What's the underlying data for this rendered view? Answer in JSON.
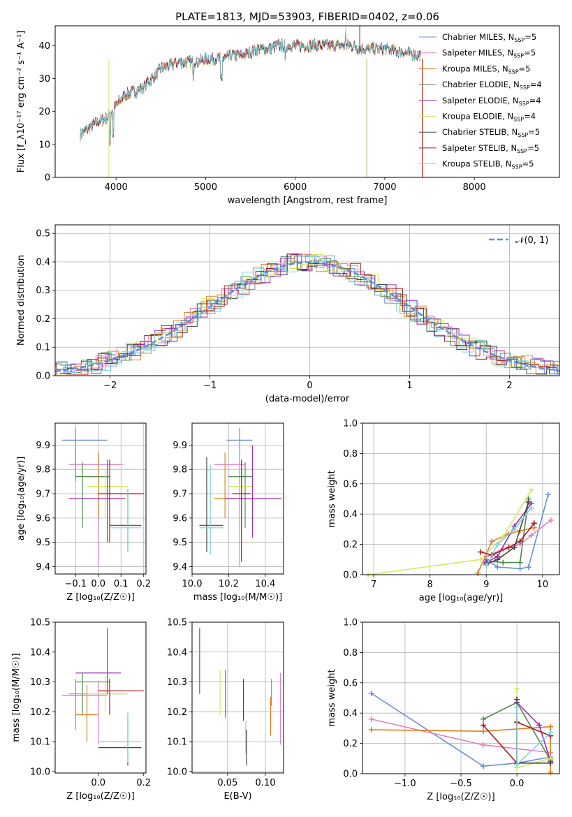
{
  "chart_data": [
    {
      "id": "spectrum",
      "type": "line",
      "title": "PLATE=1813, MJD=53903, FIBERID=0402, z=0.06",
      "xlabel": "wavelength [Angstrom, rest frame]",
      "ylabel": "Flux [f_λ10⁻¹⁷ erg cm⁻² s⁻¹ A⁻¹]",
      "xlim": [
        3320,
        8950
      ],
      "ylim": [
        0,
        46
      ],
      "xticks": [
        4000,
        5000,
        6000,
        7000,
        8000
      ],
      "yticks": [
        0,
        10,
        20,
        30,
        40
      ],
      "legend_position": "right",
      "legend": [
        {
          "label": "Chabrier MILES, N_SSP=5",
          "color": "#6a8fdc"
        },
        {
          "label": "Salpeter MILES, N_SSP=5",
          "color": "#e07fc2"
        },
        {
          "label": "Kroupa MILES, N_SSP=5",
          "color": "#e07f1f"
        },
        {
          "label": "Chabrier ELODIE, N_SSP=4",
          "color": "#4d8a4d"
        },
        {
          "label": "Salpeter ELODIE, N_SSP=4",
          "color": "#9b2fb0"
        },
        {
          "label": "Kroupa ELODIE, N_SSP=4",
          "color": "#d7e660"
        },
        {
          "label": "Chabrier STELIB, N_SSP=5",
          "color": "#444444"
        },
        {
          "label": "Salpeter STELIB, N_SSP=5",
          "color": "#b01818"
        },
        {
          "label": "Kroupa STELIB, N_SSP=5",
          "color": "#7fd6df"
        }
      ],
      "continuum": [
        [
          3600,
          13
        ],
        [
          3700,
          15
        ],
        [
          3800,
          17
        ],
        [
          3900,
          18
        ],
        [
          4000,
          22
        ],
        [
          4100,
          25
        ],
        [
          4200,
          26
        ],
        [
          4300,
          27
        ],
        [
          4400,
          30
        ],
        [
          4500,
          33
        ],
        [
          4600,
          34
        ],
        [
          4700,
          35
        ],
        [
          4800,
          35
        ],
        [
          4900,
          35
        ],
        [
          5000,
          36
        ],
        [
          5100,
          36
        ],
        [
          5200,
          36
        ],
        [
          5300,
          37
        ],
        [
          5400,
          37
        ],
        [
          5500,
          38
        ],
        [
          5600,
          39
        ],
        [
          5700,
          39
        ],
        [
          5800,
          40
        ],
        [
          5900,
          40
        ],
        [
          6000,
          40
        ],
        [
          6200,
          40
        ],
        [
          6400,
          40
        ],
        [
          6600,
          40
        ],
        [
          6800,
          39
        ],
        [
          7000,
          39
        ],
        [
          7200,
          38
        ],
        [
          7400,
          37
        ]
      ]
    },
    {
      "id": "residuals",
      "type": "line",
      "xlabel": "(data-model)/error",
      "ylabel": "Normed distribution",
      "xlim": [
        -2.55,
        2.5
      ],
      "ylim": [
        0,
        0.53
      ],
      "xticks": [
        -2,
        -1,
        0,
        1,
        2
      ],
      "yticks": [
        0.0,
        0.1,
        0.2,
        0.3,
        0.4,
        0.5
      ],
      "legend": [
        {
          "label": "𝒩(0, 1)",
          "color": "#5b8fdc",
          "style": "dashed"
        }
      ],
      "legend_position": "top-right",
      "grid": true
    },
    {
      "id": "age_vs_Z",
      "type": "scatter",
      "xlabel": "Z [log₁₀(Z/Z☉)]",
      "ylabel": "age  [log₁₀(age/yr)]",
      "xlim": [
        -0.19,
        0.21
      ],
      "ylim": [
        9.37,
        9.99
      ],
      "xticks": [
        -0.1,
        0.0,
        0.1,
        0.2
      ],
      "yticks": [
        9.4,
        9.5,
        9.6,
        9.7,
        9.8,
        9.9
      ],
      "grid": true
    },
    {
      "id": "age_vs_mass",
      "type": "scatter",
      "xlabel": "mass [log₁₀(M/M☉)]",
      "xlim": [
        10.0,
        10.5
      ],
      "ylim": [
        9.37,
        9.99
      ],
      "xticks": [
        10.0,
        10.2,
        10.4
      ],
      "yticks": [
        9.4,
        9.5,
        9.6,
        9.7,
        9.8,
        9.9
      ],
      "grid": true
    },
    {
      "id": "weight_vs_age",
      "type": "line",
      "xlabel": "age  [log₁₀(age/yr)]",
      "ylabel": "mass weight",
      "xlim": [
        6.8,
        10.3
      ],
      "ylim": [
        0,
        1.0
      ],
      "xticks": [
        7,
        8,
        9,
        10
      ],
      "yticks": [
        0.0,
        0.2,
        0.4,
        0.6,
        0.8,
        1.0
      ],
      "grid": true,
      "series": [
        {
          "color": "#6a8fdc",
          "x": [
            9.0,
            9.2,
            9.6,
            9.75,
            10.1
          ],
          "y": [
            0.1,
            0.05,
            0.04,
            0.05,
            0.53
          ]
        },
        {
          "color": "#e07fc2",
          "x": [
            9.0,
            9.3,
            9.6,
            9.8,
            10.15
          ],
          "y": [
            0.12,
            0.17,
            0.2,
            0.26,
            0.36
          ]
        },
        {
          "color": "#e07f1f",
          "x": [
            8.85,
            9.1,
            9.4,
            9.6,
            9.85
          ],
          "y": [
            0.01,
            0.22,
            0.27,
            0.29,
            0.31
          ]
        },
        {
          "color": "#4d8a4d",
          "x": [
            9.0,
            9.3,
            9.6,
            9.75
          ],
          "y": [
            0.09,
            0.08,
            0.08,
            0.5
          ]
        },
        {
          "color": "#9b2fb0",
          "x": [
            9.0,
            9.2,
            9.5,
            9.8
          ],
          "y": [
            0.08,
            0.12,
            0.32,
            0.47
          ]
        },
        {
          "color": "#d7e660",
          "x": [
            6.9,
            8.9,
            9.3,
            9.8
          ],
          "y": [
            0.0,
            0.1,
            0.25,
            0.56
          ]
        },
        {
          "color": "#444444",
          "x": [
            9.0,
            9.2,
            9.5,
            9.75
          ],
          "y": [
            0.07,
            0.1,
            0.18,
            0.48
          ]
        },
        {
          "color": "#b01818",
          "x": [
            8.9,
            9.1,
            9.4,
            9.6,
            9.85
          ],
          "y": [
            0.15,
            0.13,
            0.18,
            0.22,
            0.34
          ]
        },
        {
          "color": "#7fd6df",
          "x": [
            9.0,
            9.2,
            9.5,
            9.8
          ],
          "y": [
            0.06,
            0.2,
            0.3,
            0.44
          ]
        }
      ]
    },
    {
      "id": "mass_vs_Z",
      "type": "scatter",
      "xlabel": "Z [log₁₀(Z/Z☉)]",
      "ylabel": "mass [log₁₀(M/M☉)]",
      "xlim": [
        -0.19,
        0.21
      ],
      "ylim": [
        9.995,
        10.5
      ],
      "xticks": [
        0.0,
        0.2
      ],
      "yticks": [
        10.0,
        10.1,
        10.2,
        10.3,
        10.4,
        10.5
      ],
      "grid": false
    },
    {
      "id": "mass_vs_ebv",
      "type": "scatter",
      "xlabel": "E(B-V)",
      "xlim": [
        0.003,
        0.124
      ],
      "ylim": [
        9.995,
        10.5
      ],
      "xticks": [
        0.05,
        0.1
      ],
      "yticks": [
        10.0,
        10.1,
        10.2,
        10.3,
        10.4,
        10.5
      ],
      "grid": true,
      "series": [
        {
          "color": "#9b2fb0",
          "x": 0.013,
          "y0": 10.26,
          "y1": 10.48
        },
        {
          "color": "#d7e660",
          "x": 0.04,
          "y0": 10.19,
          "y1": 10.34
        },
        {
          "color": "#4d8a4d",
          "x": 0.047,
          "y0": 10.18,
          "y1": 10.34
        },
        {
          "color": "#b01818",
          "x": 0.071,
          "y0": 10.17,
          "y1": 10.31
        },
        {
          "color": "#7fd6df",
          "x": 0.074,
          "y0": 10.06,
          "y1": 10.17
        },
        {
          "color": "#444444",
          "x": 0.075,
          "y0": 10.02,
          "y1": 10.14
        },
        {
          "color": "#6a8fdc",
          "x": 0.108,
          "y0": 10.22,
          "y1": 10.31
        },
        {
          "color": "#e07f1f",
          "x": 0.107,
          "y0": 10.12,
          "y1": 10.25
        },
        {
          "color": "#e07fc2",
          "x": 0.12,
          "y0": 10.09,
          "y1": 10.33
        }
      ]
    },
    {
      "id": "weight_vs_Z",
      "type": "line",
      "xlabel": "Z [log₁₀(Z/Z☉)]",
      "ylabel": "mass weight",
      "xlim": [
        -1.38,
        0.38
      ],
      "ylim": [
        0,
        1.0
      ],
      "xticks": [
        -1.0,
        -0.5,
        0.0
      ],
      "yticks": [
        0.0,
        0.2,
        0.4,
        0.6,
        0.8,
        1.0
      ],
      "grid": true,
      "series": [
        {
          "color": "#6a8fdc",
          "x": [
            -1.3,
            -0.3,
            0.0,
            0.3
          ],
          "y": [
            0.53,
            0.05,
            0.07,
            0.11
          ]
        },
        {
          "color": "#e07fc2",
          "x": [
            -1.3,
            -0.3,
            0.3
          ],
          "y": [
            0.36,
            0.19,
            0.14
          ]
        },
        {
          "color": "#e07f1f",
          "x": [
            -1.3,
            -0.3,
            0.3,
            0.3
          ],
          "y": [
            0.29,
            0.28,
            0.31,
            0.01
          ]
        },
        {
          "color": "#4d8a4d",
          "x": [
            -0.3,
            0.0,
            0.3
          ],
          "y": [
            0.36,
            0.47,
            0.09
          ]
        },
        {
          "color": "#9b2fb0",
          "x": [
            0.0,
            0.2,
            0.3
          ],
          "y": [
            0.47,
            0.32,
            0.08
          ]
        },
        {
          "color": "#d7e660",
          "x": [
            0.0,
            0.0,
            0.3
          ],
          "y": [
            0.56,
            0.04,
            0.1
          ]
        },
        {
          "color": "#444444",
          "x": [
            0.0,
            0.0,
            0.3
          ],
          "y": [
            0.49,
            0.07,
            0.07
          ]
        },
        {
          "color": "#b01818",
          "x": [
            -0.3,
            0.0,
            0.0,
            0.3
          ],
          "y": [
            0.32,
            0.07,
            0.34,
            0.25
          ]
        },
        {
          "color": "#7fd6df",
          "x": [
            0.0,
            0.0,
            0.3
          ],
          "y": [
            0.44,
            0.06,
            0.27
          ]
        }
      ]
    }
  ]
}
